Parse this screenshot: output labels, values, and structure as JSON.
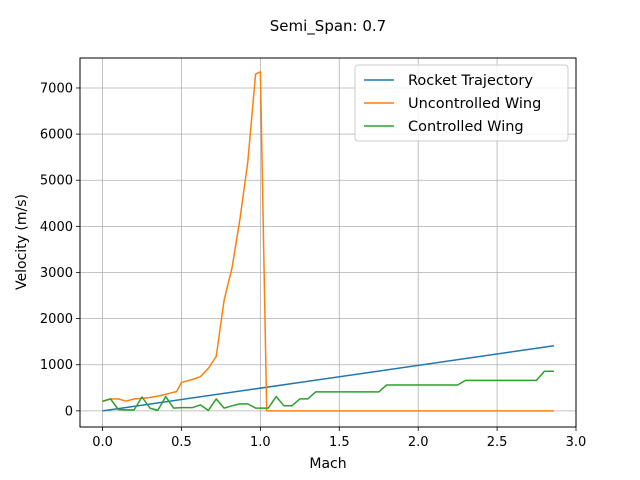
{
  "chart_data": {
    "type": "line",
    "title": "Semi_Span: 0.7",
    "xlabel": "Mach",
    "ylabel": "Velocity (m/s)",
    "xlim": [
      -0.143,
      3.0
    ],
    "ylim": [
      -350,
      7650
    ],
    "xticks": [
      0.0,
      0.5,
      1.0,
      1.5,
      2.0,
      2.5,
      3.0
    ],
    "xtick_labels": [
      "0.0",
      "0.5",
      "1.0",
      "1.5",
      "2.0",
      "2.5",
      "3.0"
    ],
    "yticks": [
      0,
      1000,
      2000,
      3000,
      4000,
      5000,
      6000,
      7000
    ],
    "ytick_labels": [
      "0",
      "1000",
      "2000",
      "3000",
      "4000",
      "5000",
      "6000",
      "7000"
    ],
    "grid": true,
    "legend_position": "top-right",
    "series": [
      {
        "name": "Rocket Trajectory",
        "color": "#1f77b4",
        "x": [
          0.0,
          2.86
        ],
        "y": [
          0,
          1410
        ]
      },
      {
        "name": "Uncontrolled Wing",
        "color": "#ff7f0e",
        "x": [
          0.0,
          0.05,
          0.1,
          0.15,
          0.2,
          0.25,
          0.3,
          0.35,
          0.4,
          0.47,
          0.5,
          0.57,
          0.62,
          0.67,
          0.72,
          0.77,
          0.82,
          0.87,
          0.92,
          0.97,
          1.0,
          1.04,
          1.1,
          1.2,
          1.5,
          2.0,
          2.5,
          2.86
        ],
        "y": [
          200,
          260,
          260,
          210,
          260,
          270,
          290,
          320,
          360,
          420,
          620,
          680,
          740,
          920,
          1180,
          2400,
          3100,
          4150,
          5400,
          7300,
          7350,
          0,
          0,
          0,
          0,
          0,
          0,
          0
        ]
      },
      {
        "name": "Controlled Wing",
        "color": "#2ca02c",
        "x": [
          0.0,
          0.05,
          0.1,
          0.15,
          0.2,
          0.25,
          0.3,
          0.35,
          0.4,
          0.45,
          0.5,
          0.57,
          0.62,
          0.67,
          0.72,
          0.77,
          0.82,
          0.87,
          0.92,
          0.97,
          1.02,
          1.05,
          1.1,
          1.15,
          1.2,
          1.25,
          1.3,
          1.35,
          1.4,
          1.5,
          1.6,
          1.7,
          1.75,
          1.8,
          2.0,
          2.2,
          2.25,
          2.3,
          2.5,
          2.7,
          2.75,
          2.8,
          2.86
        ],
        "y": [
          210,
          260,
          30,
          20,
          20,
          300,
          60,
          10,
          310,
          60,
          70,
          70,
          130,
          10,
          260,
          60,
          110,
          150,
          150,
          60,
          60,
          60,
          310,
          110,
          110,
          260,
          260,
          410,
          410,
          410,
          410,
          410,
          410,
          560,
          560,
          560,
          560,
          660,
          660,
          660,
          660,
          860,
          860
        ]
      }
    ]
  }
}
